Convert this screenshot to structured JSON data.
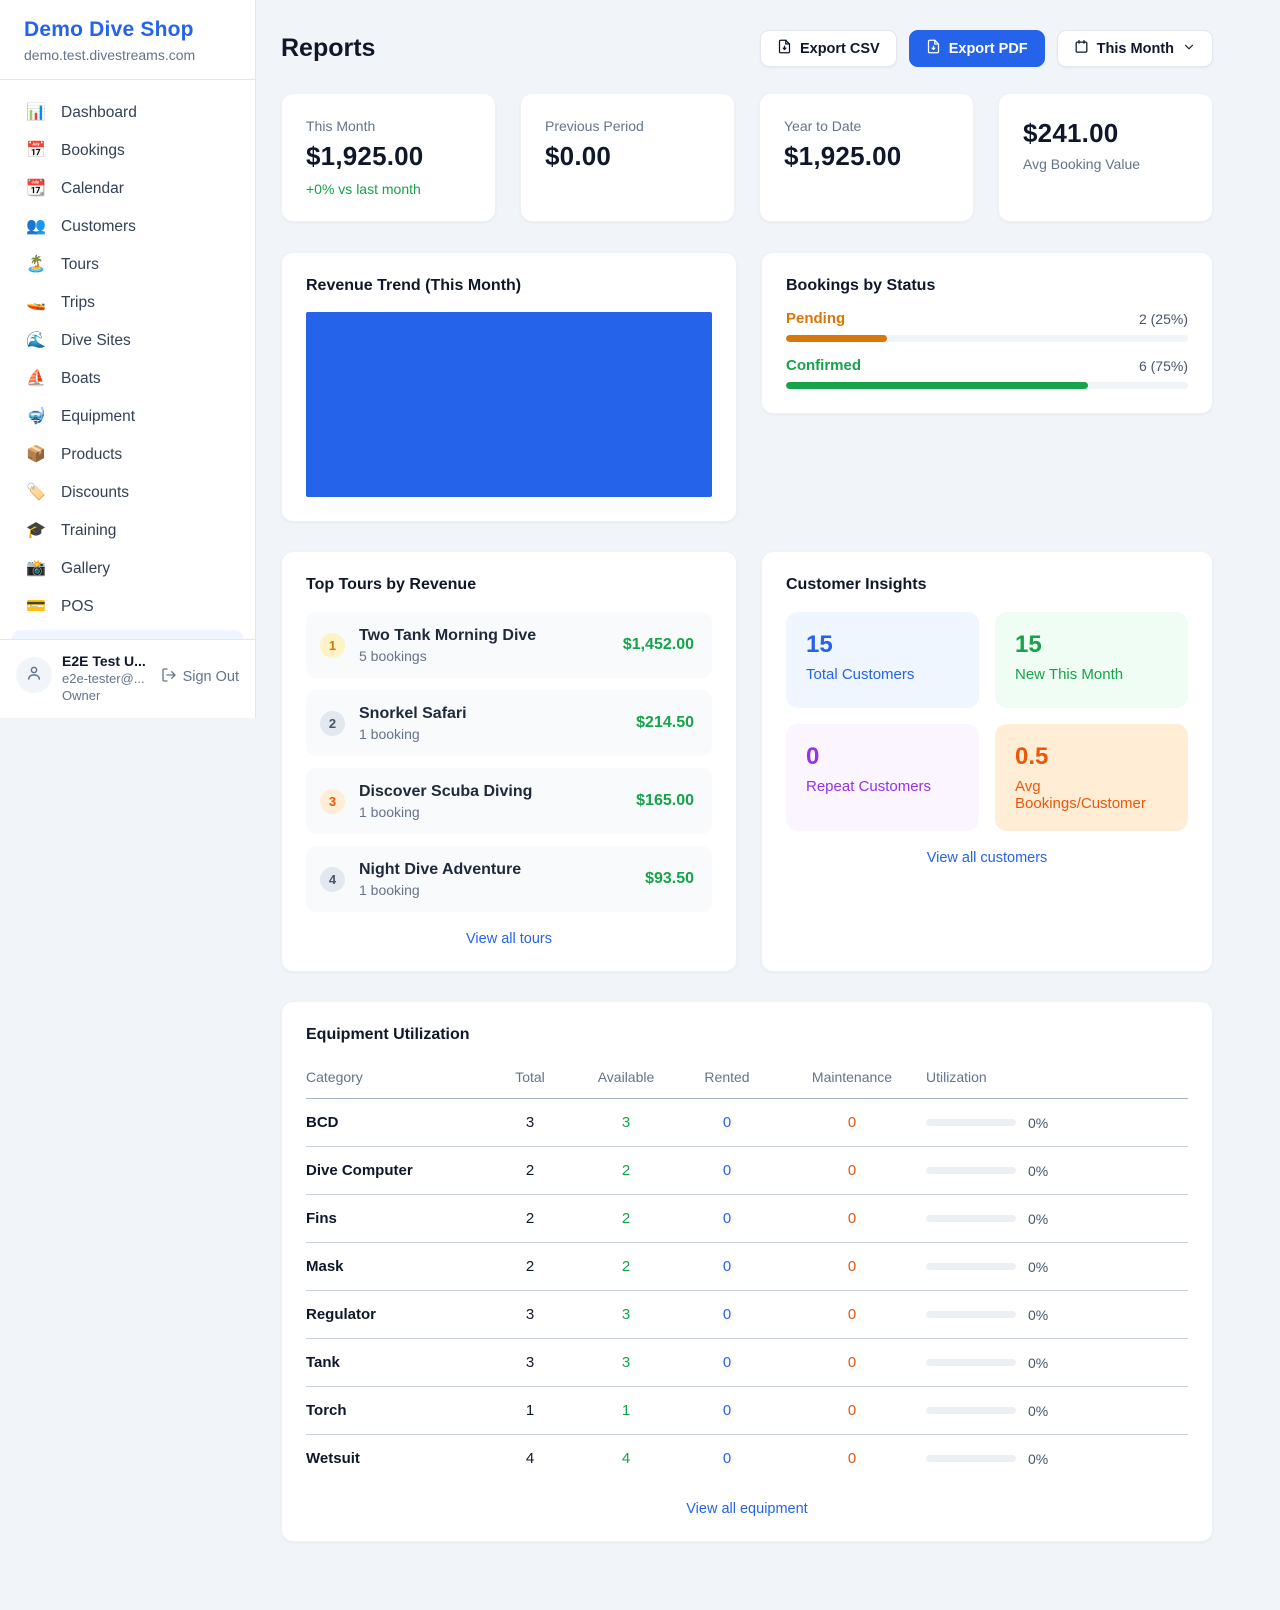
{
  "app": {
    "name": "Demo Dive Shop",
    "domain": "demo.test.divestreams.com"
  },
  "sidebar": {
    "items": [
      {
        "icon": "📊",
        "label": "Dashboard"
      },
      {
        "icon": "📅",
        "label": "Bookings"
      },
      {
        "icon": "📆",
        "label": "Calendar"
      },
      {
        "icon": "👥",
        "label": "Customers"
      },
      {
        "icon": "🏝️",
        "label": "Tours"
      },
      {
        "icon": "🚤",
        "label": "Trips"
      },
      {
        "icon": "🌊",
        "label": "Dive Sites"
      },
      {
        "icon": "⛵",
        "label": "Boats"
      },
      {
        "icon": "🤿",
        "label": "Equipment"
      },
      {
        "icon": "📦",
        "label": "Products"
      },
      {
        "icon": "🏷️",
        "label": "Discounts"
      },
      {
        "icon": "🎓",
        "label": "Training"
      },
      {
        "icon": "📸",
        "label": "Gallery"
      },
      {
        "icon": "💳",
        "label": "POS"
      }
    ],
    "user": {
      "name": "E2E Test U...",
      "email": "e2e-tester@...",
      "role": "Owner",
      "sign_out_label": "Sign Out"
    }
  },
  "header": {
    "title": "Reports",
    "export_csv_label": "Export CSV",
    "export_pdf_label": "Export PDF",
    "period_label": "This Month"
  },
  "stats": [
    {
      "label": "This Month",
      "value": "$1,925.00",
      "delta": "+0% vs last month",
      "delta_color": "#16a34a"
    },
    {
      "label": "Previous Period",
      "value": "$0.00"
    },
    {
      "label": "Year to Date",
      "value": "$1,925.00"
    },
    {
      "label": "Avg Booking Value",
      "value": "$241.00",
      "value_first": true
    }
  ],
  "revenue_trend": {
    "title": "Revenue Trend (This Month)",
    "bar_color": "#2563eb"
  },
  "bookings_by_status": {
    "title": "Bookings by Status",
    "rows": [
      {
        "label": "Pending",
        "count_text": "2 (25%)",
        "percent": 25,
        "color": "#d97706"
      },
      {
        "label": "Confirmed",
        "count_text": "6 (75%)",
        "percent": 75,
        "color": "#16a34a"
      }
    ]
  },
  "chart_data": [
    {
      "type": "bar",
      "title": "Revenue Trend (This Month)",
      "categories": [
        "This Month"
      ],
      "values": [
        1925.0
      ],
      "color": "#2563eb",
      "note": "single bar filling entire plot area"
    },
    {
      "type": "bar",
      "title": "Bookings by Status",
      "categories": [
        "Pending",
        "Confirmed"
      ],
      "values": [
        2,
        6
      ],
      "percents": [
        25,
        75
      ],
      "colors": [
        "#d97706",
        "#16a34a"
      ]
    }
  ],
  "top_tours": {
    "title": "Top Tours by Revenue",
    "view_all_label": "View all tours",
    "items": [
      {
        "rank": "1",
        "name": "Two Tank Morning Dive",
        "sub": "5 bookings",
        "price": "$1,452.00",
        "rank_color": "#d97706",
        "rank_bg": "#fef3c7"
      },
      {
        "rank": "2",
        "name": "Snorkel Safari",
        "sub": "1 booking",
        "price": "$214.50",
        "rank_color": "#475569",
        "rank_bg": "#e2e8f0"
      },
      {
        "rank": "3",
        "name": "Discover Scuba Diving",
        "sub": "1 booking",
        "price": "$165.00",
        "rank_color": "#ea580c",
        "rank_bg": "#ffedd5"
      },
      {
        "rank": "4",
        "name": "Night Dive Adventure",
        "sub": "1 booking",
        "price": "$93.50",
        "rank_color": "#475569",
        "rank_bg": "#e2e8f0"
      }
    ]
  },
  "customer_insights": {
    "title": "Customer Insights",
    "view_all_label": "View all customers",
    "tiles": [
      {
        "value": "15",
        "label": "Total Customers",
        "color": "#2563eb",
        "bg": "#eff6ff"
      },
      {
        "value": "15",
        "label": "New This Month",
        "color": "#16a34a",
        "bg": "#f0fdf4"
      },
      {
        "value": "0",
        "label": "Repeat Customers",
        "color": "#9333ea",
        "bg": "#faf5ff"
      },
      {
        "value": "0.5",
        "label": "Avg Bookings/Customer",
        "color": "#ea580c",
        "bg": "#ffedd5"
      }
    ]
  },
  "equipment": {
    "title": "Equipment Utilization",
    "view_all_label": "View all equipment",
    "columns": [
      "Category",
      "Total",
      "Available",
      "Rented",
      "Maintenance",
      "Utilization"
    ],
    "rows": [
      {
        "category": "BCD",
        "total": "3",
        "available": "3",
        "rented": "0",
        "maintenance": "0",
        "utilization": "0%",
        "utilization_percent": 0
      },
      {
        "category": "Dive Computer",
        "total": "2",
        "available": "2",
        "rented": "0",
        "maintenance": "0",
        "utilization": "0%",
        "utilization_percent": 0
      },
      {
        "category": "Fins",
        "total": "2",
        "available": "2",
        "rented": "0",
        "maintenance": "0",
        "utilization": "0%",
        "utilization_percent": 0
      },
      {
        "category": "Mask",
        "total": "2",
        "available": "2",
        "rented": "0",
        "maintenance": "0",
        "utilization": "0%",
        "utilization_percent": 0
      },
      {
        "category": "Regulator",
        "total": "3",
        "available": "3",
        "rented": "0",
        "maintenance": "0",
        "utilization": "0%",
        "utilization_percent": 0
      },
      {
        "category": "Tank",
        "total": "3",
        "available": "3",
        "rented": "0",
        "maintenance": "0",
        "utilization": "0%",
        "utilization_percent": 0
      },
      {
        "category": "Torch",
        "total": "1",
        "available": "1",
        "rented": "0",
        "maintenance": "0",
        "utilization": "0%",
        "utilization_percent": 0
      },
      {
        "category": "Wetsuit",
        "total": "4",
        "available": "4",
        "rented": "0",
        "maintenance": "0",
        "utilization": "0%",
        "utilization_percent": 0
      }
    ]
  }
}
